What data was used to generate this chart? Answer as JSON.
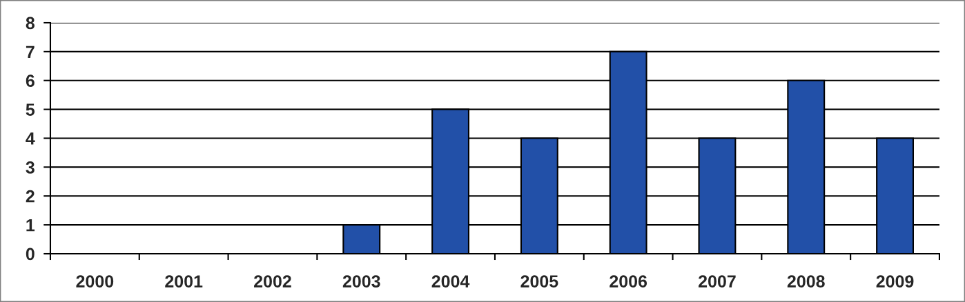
{
  "chart_data": {
    "type": "bar",
    "categories": [
      "2000",
      "2001",
      "2002",
      "2003",
      "2004",
      "2005",
      "2006",
      "2007",
      "2008",
      "2009"
    ],
    "values": [
      0,
      0,
      0,
      1,
      5,
      4,
      7,
      4,
      6,
      4
    ],
    "color": "#2250a8",
    "ylim": [
      0,
      8
    ],
    "yticks": [
      0,
      1,
      2,
      3,
      4,
      5,
      6,
      7,
      8
    ],
    "grid": "y"
  }
}
